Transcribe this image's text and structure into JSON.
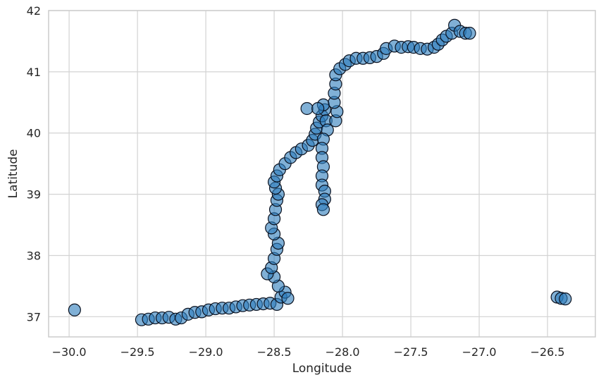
{
  "chart_data": {
    "type": "scatter",
    "title": "",
    "xlabel": "Longitude",
    "ylabel": "Latitude",
    "xlim": [
      -30.15,
      -26.15
    ],
    "ylim": [
      36.67,
      42.0
    ],
    "xticks": [
      -30.0,
      -29.5,
      -29.0,
      -28.5,
      -28.0,
      -27.5,
      -27.0,
      -26.5
    ],
    "xtick_labels": [
      "−30.0",
      "−29.5",
      "−29.0",
      "−28.5",
      "−28.0",
      "−27.5",
      "−27.0",
      "−26.5"
    ],
    "yticks": [
      37,
      38,
      39,
      40,
      41,
      42
    ],
    "ytick_labels": [
      "37",
      "38",
      "39",
      "40",
      "41",
      "42"
    ],
    "grid": true,
    "colors": {
      "fill": "#2b7bba",
      "edge": "#0b1220"
    },
    "series": [
      {
        "points": [
          [
            -29.96,
            37.11
          ],
          [
            -29.47,
            36.95
          ],
          [
            -29.42,
            36.96
          ],
          [
            -29.37,
            36.98
          ],
          [
            -29.32,
            36.98
          ],
          [
            -29.27,
            36.99
          ],
          [
            -29.22,
            36.96
          ],
          [
            -29.18,
            36.98
          ],
          [
            -29.13,
            37.04
          ],
          [
            -29.08,
            37.07
          ],
          [
            -29.03,
            37.08
          ],
          [
            -28.98,
            37.11
          ],
          [
            -28.93,
            37.13
          ],
          [
            -28.88,
            37.14
          ],
          [
            -28.83,
            37.14
          ],
          [
            -28.78,
            37.16
          ],
          [
            -28.73,
            37.18
          ],
          [
            -28.68,
            37.19
          ],
          [
            -28.63,
            37.2
          ],
          [
            -28.58,
            37.21
          ],
          [
            -28.53,
            37.22
          ],
          [
            -28.48,
            37.2
          ],
          [
            -28.45,
            37.32
          ],
          [
            -28.42,
            37.4
          ],
          [
            -28.4,
            37.3
          ],
          [
            -28.47,
            37.5
          ],
          [
            -28.5,
            37.65
          ],
          [
            -28.55,
            37.7
          ],
          [
            -28.52,
            37.8
          ],
          [
            -28.5,
            37.95
          ],
          [
            -28.48,
            38.1
          ],
          [
            -28.47,
            38.2
          ],
          [
            -28.5,
            38.35
          ],
          [
            -28.52,
            38.45
          ],
          [
            -28.5,
            38.6
          ],
          [
            -28.49,
            38.75
          ],
          [
            -28.48,
            38.9
          ],
          [
            -28.47,
            39.0
          ],
          [
            -28.49,
            39.1
          ],
          [
            -28.5,
            39.2
          ],
          [
            -28.48,
            39.3
          ],
          [
            -28.46,
            39.4
          ],
          [
            -28.42,
            39.5
          ],
          [
            -28.38,
            39.6
          ],
          [
            -28.34,
            39.68
          ],
          [
            -28.3,
            39.74
          ],
          [
            -28.25,
            39.8
          ],
          [
            -28.22,
            39.88
          ],
          [
            -28.2,
            39.98
          ],
          [
            -28.19,
            40.08
          ],
          [
            -28.17,
            40.18
          ],
          [
            -28.15,
            40.28
          ],
          [
            -28.13,
            40.38
          ],
          [
            -28.14,
            40.46
          ],
          [
            -28.26,
            40.4
          ],
          [
            -28.18,
            40.4
          ],
          [
            -28.12,
            40.2
          ],
          [
            -28.11,
            40.05
          ],
          [
            -28.14,
            39.9
          ],
          [
            -28.15,
            39.75
          ],
          [
            -28.15,
            39.6
          ],
          [
            -28.14,
            39.45
          ],
          [
            -28.15,
            39.3
          ],
          [
            -28.15,
            39.15
          ],
          [
            -28.13,
            39.05
          ],
          [
            -28.13,
            38.92
          ],
          [
            -28.15,
            38.83
          ],
          [
            -28.14,
            38.75
          ],
          [
            -28.05,
            40.2
          ],
          [
            -28.04,
            40.35
          ],
          [
            -28.06,
            40.5
          ],
          [
            -28.06,
            40.65
          ],
          [
            -28.05,
            40.8
          ],
          [
            -28.05,
            40.95
          ],
          [
            -28.02,
            41.05
          ],
          [
            -27.98,
            41.12
          ],
          [
            -27.95,
            41.18
          ],
          [
            -27.9,
            41.22
          ],
          [
            -27.85,
            41.22
          ],
          [
            -27.8,
            41.23
          ],
          [
            -27.75,
            41.25
          ],
          [
            -27.7,
            41.3
          ],
          [
            -27.68,
            41.38
          ],
          [
            -27.62,
            41.42
          ],
          [
            -27.57,
            41.4
          ],
          [
            -27.52,
            41.41
          ],
          [
            -27.48,
            41.4
          ],
          [
            -27.43,
            41.38
          ],
          [
            -27.38,
            41.37
          ],
          [
            -27.33,
            41.4
          ],
          [
            -27.3,
            41.45
          ],
          [
            -27.27,
            41.52
          ],
          [
            -27.24,
            41.58
          ],
          [
            -27.2,
            41.63
          ],
          [
            -27.18,
            41.76
          ],
          [
            -27.14,
            41.66
          ],
          [
            -27.1,
            41.63
          ],
          [
            -27.07,
            41.63
          ],
          [
            -26.43,
            37.32
          ],
          [
            -26.4,
            37.3
          ],
          [
            -26.37,
            37.29
          ]
        ]
      }
    ]
  }
}
